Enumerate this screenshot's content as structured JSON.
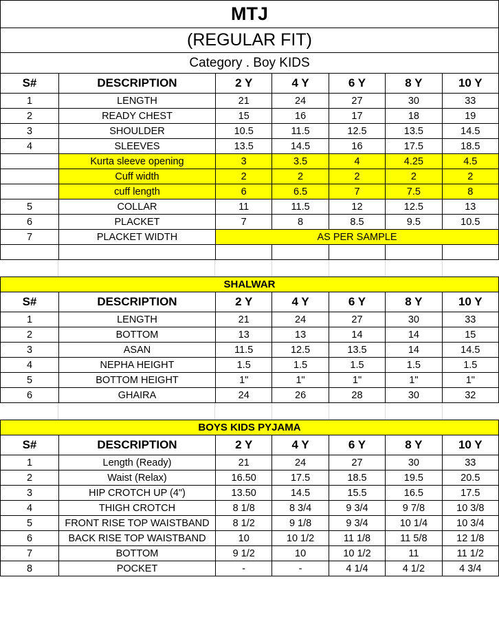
{
  "header": {
    "title": "MTJ",
    "subtitle": "(REGULAR FIT)",
    "category": "Category . Boy KIDS"
  },
  "columns": [
    "S#",
    "DESCRIPTION",
    "2 Y",
    "4 Y",
    "6 Y",
    "8 Y",
    "10 Y"
  ],
  "colors": {
    "highlight": "#FFFF00",
    "border": "#000000",
    "gridline": "#D9D9D9"
  },
  "tables": [
    {
      "id": "kurta",
      "banner": null,
      "rows": [
        {
          "sn": "1",
          "desc": "LENGTH",
          "values": [
            "21",
            "24",
            "27",
            "30",
            "33"
          ],
          "highlight": false
        },
        {
          "sn": "2",
          "desc": "READY CHEST",
          "values": [
            "15",
            "16",
            "17",
            "18",
            "19"
          ],
          "highlight": false
        },
        {
          "sn": "3",
          "desc": "SHOULDER",
          "values": [
            "10.5",
            "11.5",
            "12.5",
            "13.5",
            "14.5"
          ],
          "highlight": false
        },
        {
          "sn": "4",
          "desc": "SLEEVES",
          "values": [
            "13.5",
            "14.5",
            "16",
            "17.5",
            "18.5"
          ],
          "highlight": false
        },
        {
          "sn": "",
          "desc": "Kurta sleeve opening",
          "values": [
            "3",
            "3.5",
            "4",
            "4.25",
            "4.5"
          ],
          "highlight": true
        },
        {
          "sn": "",
          "desc": "Cuff width",
          "values": [
            "2",
            "2",
            "2",
            "2",
            "2"
          ],
          "highlight": true
        },
        {
          "sn": "",
          "desc": "cuff length",
          "values": [
            "6",
            "6.5",
            "7",
            "7.5",
            "8"
          ],
          "highlight": true
        },
        {
          "sn": "5",
          "desc": "COLLAR",
          "values": [
            "11",
            "11.5",
            "12",
            "12.5",
            "13"
          ],
          "highlight": false
        },
        {
          "sn": "6",
          "desc": "PLACKET",
          "values": [
            "7",
            "8",
            "8.5",
            "9.5",
            "10.5"
          ],
          "highlight": false
        },
        {
          "sn": "7",
          "desc": "PLACKET WIDTH",
          "merged": "AS PER SAMPLE",
          "highlight": false
        },
        {
          "sn": "",
          "desc": "",
          "values": [
            "",
            "",
            "",
            "",
            ""
          ],
          "highlight": false
        }
      ]
    },
    {
      "id": "shalwar",
      "banner": "SHALWAR",
      "rows": [
        {
          "sn": "1",
          "desc": "LENGTH",
          "values": [
            "21",
            "24",
            "27",
            "30",
            "33"
          ],
          "highlight": false
        },
        {
          "sn": "2",
          "desc": "BOTTOM",
          "values": [
            "13",
            "13",
            "14",
            "14",
            "15"
          ],
          "highlight": false
        },
        {
          "sn": "3",
          "desc": "ASAN",
          "values": [
            "11.5",
            "12.5",
            "13.5",
            "14",
            "14.5"
          ],
          "highlight": false
        },
        {
          "sn": "4",
          "desc": "NEPHA HEIGHT",
          "values": [
            "1.5",
            "1.5",
            "1.5",
            "1.5",
            "1.5"
          ],
          "highlight": false
        },
        {
          "sn": "5",
          "desc": "BOTTOM HEIGHT",
          "values": [
            "1\"",
            "1\"",
            "1\"",
            "1\"",
            "1\""
          ],
          "highlight": false
        },
        {
          "sn": "6",
          "desc": "GHAIRA",
          "values": [
            "24",
            "26",
            "28",
            "30",
            "32"
          ],
          "highlight": false
        }
      ]
    },
    {
      "id": "pyjama",
      "banner": "BOYS KIDS PYJAMA",
      "rows": [
        {
          "sn": "1",
          "desc": "Length (Ready)",
          "values": [
            "21",
            "24",
            "27",
            "30",
            "33"
          ],
          "highlight": false
        },
        {
          "sn": "2",
          "desc": "Waist (Relax)",
          "values": [
            "16.50",
            "17.5",
            "18.5",
            "19.5",
            "20.5"
          ],
          "highlight": false
        },
        {
          "sn": "3",
          "desc": "HIP CROTCH UP (4\")",
          "values": [
            "13.50",
            "14.5",
            "15.5",
            "16.5",
            "17.5"
          ],
          "highlight": false
        },
        {
          "sn": "4",
          "desc": "THIGH CROTCH",
          "values": [
            "8 1/8",
            "8 3/4",
            "9 3/4",
            "9 7/8",
            "10 3/8"
          ],
          "highlight": false
        },
        {
          "sn": "5",
          "desc": "FRONT RISE TOP WAISTBAND",
          "values": [
            "8 1/2",
            "9 1/8",
            "9 3/4",
            "10 1/4",
            "10 3/4"
          ],
          "highlight": false
        },
        {
          "sn": "6",
          "desc": "BACK RISE TOP WAISTBAND",
          "values": [
            "10",
            "10 1/2",
            "11 1/8",
            "11 5/8",
            "12 1/8"
          ],
          "highlight": false
        },
        {
          "sn": "7",
          "desc": "BOTTOM",
          "values": [
            "9 1/2",
            "10",
            "10 1/2",
            "11",
            "11 1/2"
          ],
          "highlight": false
        },
        {
          "sn": "8",
          "desc": "POCKET",
          "values": [
            "-",
            "-",
            "4 1/4",
            "4 1/2",
            "4 3/4"
          ],
          "highlight": false
        }
      ]
    }
  ]
}
